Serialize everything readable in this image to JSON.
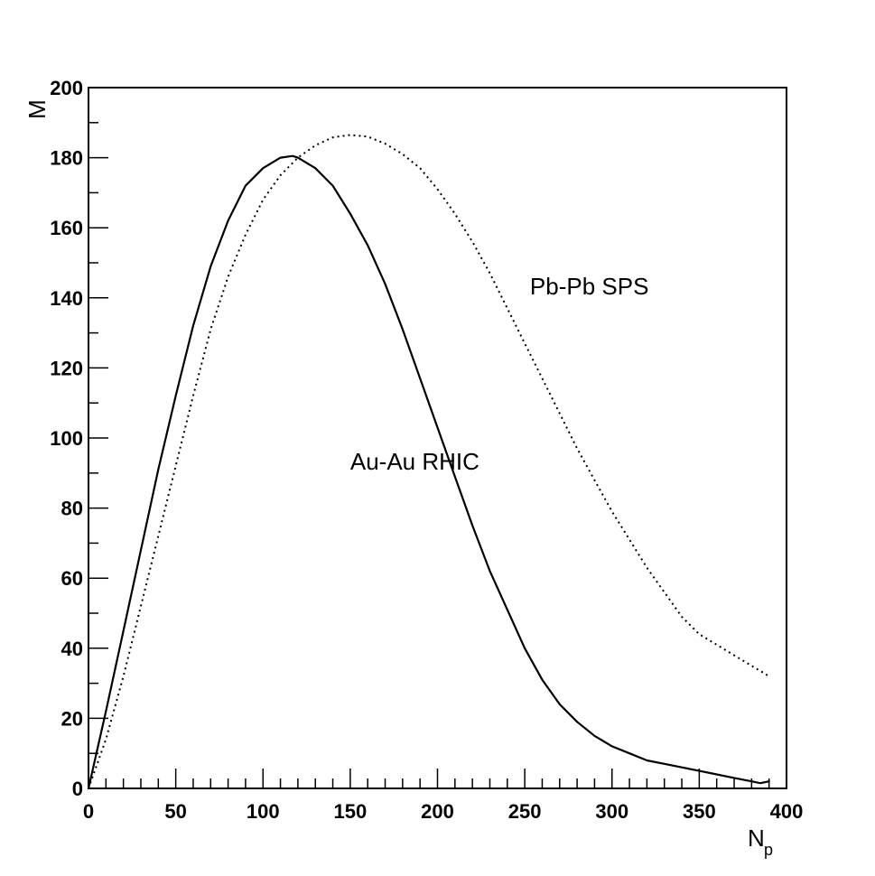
{
  "chart_data": {
    "type": "line",
    "title": "",
    "xlabel": "N",
    "xlabel_subscript": "p",
    "ylabel": "M",
    "xlim": [
      0,
      400
    ],
    "ylim": [
      0,
      200
    ],
    "x_ticks": [
      0,
      50,
      100,
      150,
      200,
      250,
      300,
      350,
      400
    ],
    "y_ticks": [
      0,
      20,
      40,
      60,
      80,
      100,
      120,
      140,
      160,
      180,
      200
    ],
    "grid": false,
    "legend": "none",
    "series": [
      {
        "name": "Au-Au RHIC",
        "style": "solid",
        "x": [
          0,
          10,
          20,
          30,
          40,
          50,
          60,
          70,
          80,
          90,
          100,
          110,
          117,
          120,
          130,
          140,
          150,
          160,
          170,
          180,
          190,
          200,
          210,
          220,
          230,
          240,
          250,
          260,
          270,
          280,
          290,
          300,
          310,
          320,
          330,
          340,
          350,
          360,
          370,
          380,
          385,
          390
        ],
        "y": [
          0,
          22,
          45,
          68,
          91,
          112,
          132,
          149,
          162,
          172,
          177,
          180,
          180.5,
          180,
          177,
          172,
          164,
          155,
          144,
          131,
          117,
          103,
          89,
          75,
          62,
          51,
          40,
          31,
          24,
          19,
          15,
          12,
          10,
          8,
          7,
          6,
          5,
          4,
          3,
          2,
          1.5,
          2
        ]
      },
      {
        "name": "Pb-Pb SPS",
        "style": "dotted",
        "x": [
          0,
          10,
          20,
          30,
          40,
          50,
          60,
          70,
          80,
          90,
          100,
          110,
          120,
          130,
          140,
          150,
          160,
          170,
          180,
          190,
          200,
          210,
          220,
          230,
          240,
          250,
          260,
          270,
          280,
          290,
          300,
          310,
          320,
          330,
          340,
          350,
          360,
          370,
          380,
          390
        ],
        "y": [
          0,
          14,
          32,
          52,
          72,
          92,
          112,
          131,
          146,
          158,
          168,
          175,
          180,
          183.5,
          185.8,
          186.5,
          186,
          184,
          181,
          177,
          171,
          164,
          156,
          147,
          137,
          127,
          117,
          107,
          97,
          88,
          79,
          71,
          63,
          56,
          49,
          44,
          41,
          38,
          35,
          32
        ]
      }
    ],
    "annotations": [
      {
        "text": "Pb-Pb SPS",
        "x": 253,
        "y": 141
      },
      {
        "text": "Au-Au RHIC",
        "x": 150,
        "y": 91
      }
    ]
  }
}
